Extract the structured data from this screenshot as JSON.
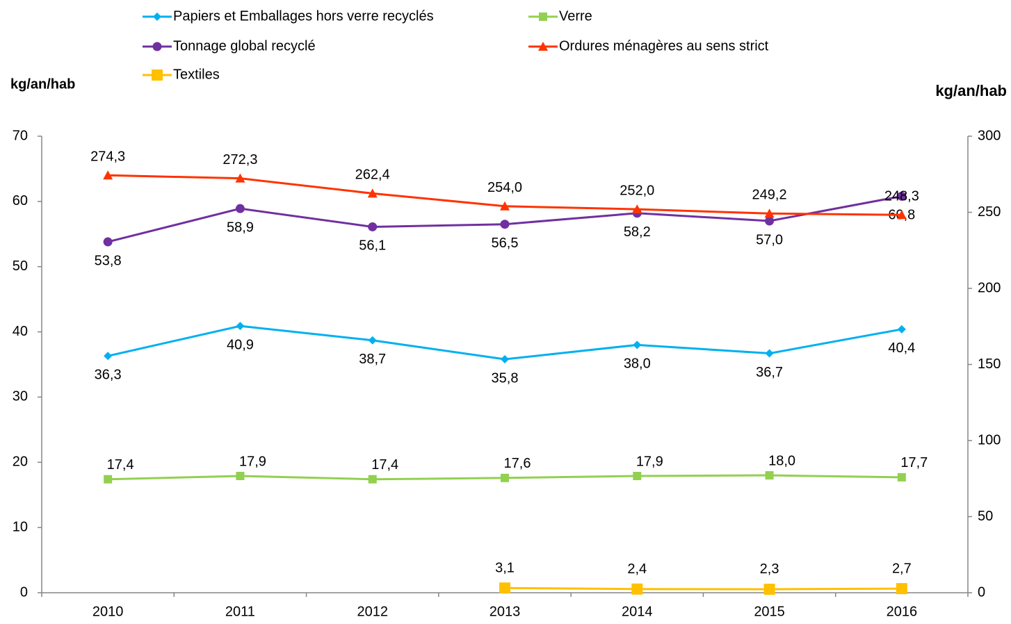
{
  "chart_data": {
    "type": "line",
    "ylabel": "kg/an/hab",
    "y2label": "kg/an/hab",
    "categories": [
      "2010",
      "2011",
      "2012",
      "2013",
      "2014",
      "2015",
      "2016"
    ],
    "ylim": [
      0,
      70
    ],
    "yticks": [
      0,
      10,
      20,
      30,
      40,
      50,
      60,
      70
    ],
    "y2lim": [
      0,
      300
    ],
    "y2ticks": [
      0,
      50,
      100,
      150,
      200,
      250,
      300
    ],
    "grid": false,
    "series": [
      {
        "name": "Papiers et Emballages hors verre recyclés",
        "color": "#00b0f0",
        "marker": "diamond",
        "axis": "y",
        "values": [
          36.3,
          40.9,
          38.7,
          35.8,
          38.0,
          36.7,
          40.4
        ],
        "value_labels": [
          "36,3",
          "40,9",
          "38,7",
          "35,8",
          "38,0",
          "36,7",
          "40,4"
        ]
      },
      {
        "name": "Verre",
        "color": "#92d050",
        "marker": "square",
        "axis": "y",
        "values": [
          17.4,
          17.9,
          17.4,
          17.6,
          17.9,
          18.0,
          17.7
        ],
        "value_labels": [
          "17,4",
          "17,9",
          "17,4",
          "17,6",
          "17,9",
          "18,0",
          "17,7"
        ]
      },
      {
        "name": "Tonnage global recyclé",
        "color": "#7030a0",
        "marker": "circle",
        "axis": "y",
        "values": [
          53.8,
          58.9,
          56.1,
          56.5,
          58.2,
          57.0,
          60.8
        ],
        "value_labels": [
          "53,8",
          "58,9",
          "56,1",
          "56,5",
          "58,2",
          "57,0",
          "60,8"
        ]
      },
      {
        "name": "Ordures ménagères au sens strict",
        "color": "#ff3300",
        "marker": "triangle",
        "axis": "y2",
        "values": [
          274.3,
          272.3,
          262.4,
          254.0,
          252.0,
          249.2,
          248.3
        ],
        "value_labels": [
          "274,3",
          "272,3",
          "262,4",
          "254,0",
          "252,0",
          "249,2",
          "248,3"
        ]
      },
      {
        "name": "Textiles",
        "color": "#ffc000",
        "marker": "bigsquare",
        "axis": "y2",
        "values": [
          null,
          null,
          null,
          3.1,
          2.4,
          2.3,
          2.7
        ],
        "value_labels": [
          null,
          null,
          null,
          "3,1",
          "2,4",
          "2,3",
          "2,7"
        ]
      }
    ]
  }
}
